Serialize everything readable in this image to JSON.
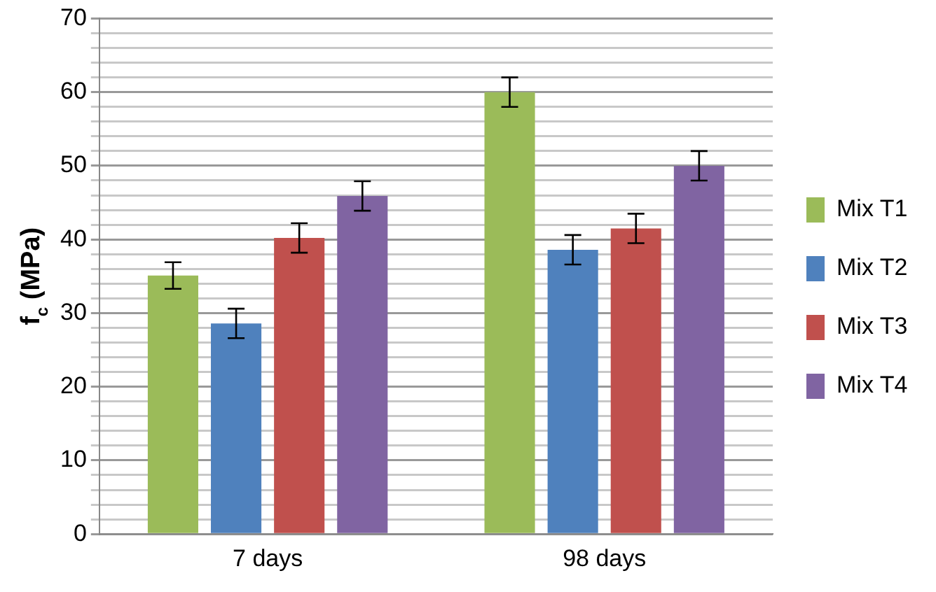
{
  "chart_data": {
    "type": "bar",
    "ylabel": "f$_{c}$ (MPa)",
    "categories": [
      "7 days",
      "98 days"
    ],
    "series": [
      {
        "name": "Mix T1",
        "color": "#9bbb59",
        "values": [
          35.1,
          60.0
        ],
        "errors": [
          1.8,
          2
        ]
      },
      {
        "name": "Mix T2",
        "color": "#4f81bd",
        "values": [
          28.6,
          38.6
        ],
        "errors": [
          2,
          2
        ]
      },
      {
        "name": "Mix T3",
        "color": "#c0504d",
        "values": [
          40.2,
          41.5
        ],
        "errors": [
          2,
          2
        ]
      },
      {
        "name": "Mix T4",
        "color": "#8064a2",
        "values": [
          45.9,
          50.0
        ],
        "errors": [
          2,
          2
        ]
      }
    ],
    "ylim": [
      0,
      70
    ],
    "yticks": [
      0,
      {
        "value": 2,
        "label": null
      },
      {
        "value": 4,
        "label": null
      },
      {
        "value": 6,
        "label": null
      },
      {
        "value": 8,
        "label": null
      },
      10,
      {
        "value": 12,
        "label": null
      },
      {
        "value": 14,
        "label": null
      },
      {
        "value": 16,
        "label": null
      },
      {
        "value": 18,
        "label": null
      },
      20,
      {
        "value": 22,
        "label": null
      },
      {
        "value": 24,
        "label": null
      },
      {
        "value": 26,
        "label": null
      },
      {
        "value": 28,
        "label": null
      },
      30,
      {
        "value": 32,
        "label": null
      },
      {
        "value": 34,
        "label": null
      },
      {
        "value": 36,
        "label": null
      },
      {
        "value": 38,
        "label": null
      },
      40,
      {
        "value": 42,
        "label": null
      },
      {
        "value": 44,
        "label": null
      },
      {
        "value": 46,
        "label": null
      },
      {
        "value": 48,
        "label": null
      },
      50,
      {
        "value": 52,
        "label": null
      },
      {
        "value": 54,
        "label": null
      },
      {
        "value": 56,
        "label": null
      },
      {
        "value": 58,
        "label": null
      },
      60,
      {
        "value": 62,
        "label": null
      },
      {
        "value": 64,
        "label": null
      },
      {
        "value": 66,
        "label": null
      },
      {
        "value": 68,
        "label": null
      },
      70
    ],
    "grid": "y",
    "legend": "right"
  }
}
